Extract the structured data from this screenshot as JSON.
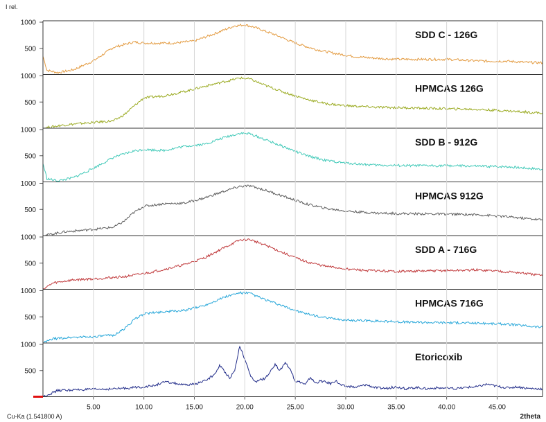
{
  "chart_data": {
    "type": "line",
    "title": "",
    "ylabel": "I rel.",
    "xlabel": "2theta",
    "radiation": "Cu-Ka (1.541800 A)",
    "xlim": [
      0,
      49.5
    ],
    "x_ticks": [
      "5.00",
      "10.00",
      "15.00",
      "20.00",
      "25.00",
      "30.00",
      "35.00",
      "40.00",
      "45.00"
    ],
    "x_tick_values": [
      5,
      10,
      15,
      20,
      25,
      30,
      35,
      40,
      45
    ],
    "y_ticks": [
      {
        "label": "1000",
        "value": 1000
      },
      {
        "label": "500",
        "value": 500
      }
    ],
    "ylim_per_panel": [
      0,
      1000
    ],
    "grid": "vertical",
    "series": [
      {
        "name": "SDD C - 126G",
        "color": "#e39a3f",
        "points": [
          [
            0.0,
            350
          ],
          [
            0.4,
            80
          ],
          [
            1.5,
            35
          ],
          [
            3,
            90
          ],
          [
            5,
            260
          ],
          [
            7,
            520
          ],
          [
            9,
            620
          ],
          [
            10,
            600
          ],
          [
            13,
            600
          ],
          [
            15,
            640
          ],
          [
            17,
            780
          ],
          [
            19,
            930
          ],
          [
            20,
            950
          ],
          [
            21,
            900
          ],
          [
            23,
            760
          ],
          [
            25,
            600
          ],
          [
            27,
            480
          ],
          [
            29,
            400
          ],
          [
            31,
            340
          ],
          [
            33,
            310
          ],
          [
            35,
            290
          ],
          [
            37,
            290
          ],
          [
            40,
            290
          ],
          [
            42,
            270
          ],
          [
            44,
            255
          ],
          [
            46,
            255
          ],
          [
            48,
            230
          ],
          [
            49.5,
            225
          ]
        ]
      },
      {
        "name": "HPMCAS 126G",
        "color": "#9aaa20",
        "points": [
          [
            0.0,
            0
          ],
          [
            2,
            60
          ],
          [
            5,
            110
          ],
          [
            7,
            140
          ],
          [
            8,
            250
          ],
          [
            9,
            420
          ],
          [
            10,
            580
          ],
          [
            12,
            620
          ],
          [
            14,
            700
          ],
          [
            16,
            800
          ],
          [
            18,
            890
          ],
          [
            19.5,
            960
          ],
          [
            20.5,
            940
          ],
          [
            22,
            820
          ],
          [
            24,
            680
          ],
          [
            26,
            560
          ],
          [
            28,
            470
          ],
          [
            30,
            430
          ],
          [
            33,
            400
          ],
          [
            36,
            390
          ],
          [
            40,
            370
          ],
          [
            43,
            360
          ],
          [
            46,
            330
          ],
          [
            49.5,
            290
          ]
        ]
      },
      {
        "name": "SDD B - 912G",
        "color": "#40c9b8",
        "points": [
          [
            0.0,
            350
          ],
          [
            0.4,
            60
          ],
          [
            1.5,
            20
          ],
          [
            3,
            80
          ],
          [
            5,
            260
          ],
          [
            7,
            470
          ],
          [
            9,
            590
          ],
          [
            10,
            620
          ],
          [
            12,
            600
          ],
          [
            14,
            680
          ],
          [
            16,
            720
          ],
          [
            18,
            850
          ],
          [
            19.5,
            930
          ],
          [
            20.5,
            920
          ],
          [
            22,
            810
          ],
          [
            24,
            660
          ],
          [
            26,
            510
          ],
          [
            28,
            410
          ],
          [
            30,
            360
          ],
          [
            33,
            320
          ],
          [
            36,
            310
          ],
          [
            40,
            310
          ],
          [
            43,
            300
          ],
          [
            46,
            290
          ],
          [
            49.5,
            240
          ]
        ]
      },
      {
        "name": "HPMCAS 912G",
        "color": "#5e5e5e",
        "points": [
          [
            0.0,
            0
          ],
          [
            2,
            70
          ],
          [
            5,
            120
          ],
          [
            7,
            160
          ],
          [
            8,
            270
          ],
          [
            9,
            440
          ],
          [
            10,
            560
          ],
          [
            12,
            610
          ],
          [
            14,
            620
          ],
          [
            16,
            720
          ],
          [
            18,
            850
          ],
          [
            19.5,
            940
          ],
          [
            20.5,
            950
          ],
          [
            22,
            870
          ],
          [
            24,
            740
          ],
          [
            26,
            610
          ],
          [
            28,
            520
          ],
          [
            30,
            470
          ],
          [
            33,
            430
          ],
          [
            36,
            420
          ],
          [
            40,
            410
          ],
          [
            43,
            400
          ],
          [
            46,
            360
          ],
          [
            49.5,
            300
          ]
        ]
      },
      {
        "name": "SDD A - 716G",
        "color": "#c0393b",
        "points": [
          [
            0.0,
            0
          ],
          [
            1,
            120
          ],
          [
            3,
            180
          ],
          [
            5,
            200
          ],
          [
            8,
            240
          ],
          [
            10,
            300
          ],
          [
            12,
            380
          ],
          [
            14,
            470
          ],
          [
            16,
            600
          ],
          [
            18,
            800
          ],
          [
            19.5,
            940
          ],
          [
            20.5,
            950
          ],
          [
            22,
            850
          ],
          [
            24,
            680
          ],
          [
            26,
            530
          ],
          [
            28,
            440
          ],
          [
            30,
            390
          ],
          [
            32,
            360
          ],
          [
            35,
            340
          ],
          [
            38,
            350
          ],
          [
            41,
            360
          ],
          [
            43,
            370
          ],
          [
            45,
            350
          ],
          [
            47,
            320
          ],
          [
            49.5,
            260
          ]
        ]
      },
      {
        "name": "HPMCAS 716G",
        "color": "#25a6d9",
        "points": [
          [
            0.0,
            0
          ],
          [
            1,
            80
          ],
          [
            3,
            110
          ],
          [
            5,
            120
          ],
          [
            7,
            150
          ],
          [
            8,
            260
          ],
          [
            9,
            440
          ],
          [
            10,
            560
          ],
          [
            12,
            600
          ],
          [
            14,
            620
          ],
          [
            16,
            720
          ],
          [
            18,
            880
          ],
          [
            19.5,
            960
          ],
          [
            20.5,
            950
          ],
          [
            22,
            830
          ],
          [
            24,
            690
          ],
          [
            26,
            560
          ],
          [
            28,
            480
          ],
          [
            30,
            440
          ],
          [
            33,
            420
          ],
          [
            36,
            400
          ],
          [
            40,
            390
          ],
          [
            43,
            380
          ],
          [
            46,
            360
          ],
          [
            49.5,
            300
          ]
        ]
      },
      {
        "name": "Etoricoxib",
        "color": "#1f2a88",
        "points": [
          [
            0.0,
            0
          ],
          [
            1.5,
            120
          ],
          [
            3,
            130
          ],
          [
            5,
            140
          ],
          [
            7,
            150
          ],
          [
            8,
            160
          ],
          [
            10,
            190
          ],
          [
            11,
            210
          ],
          [
            12,
            280
          ],
          [
            13,
            260
          ],
          [
            14,
            220
          ],
          [
            15,
            240
          ],
          [
            16,
            300
          ],
          [
            17,
            420
          ],
          [
            17.5,
            600
          ],
          [
            18,
            480
          ],
          [
            18.5,
            360
          ],
          [
            19,
            500
          ],
          [
            19.5,
            980
          ],
          [
            20,
            720
          ],
          [
            20.5,
            420
          ],
          [
            21,
            280
          ],
          [
            21.5,
            320
          ],
          [
            22,
            350
          ],
          [
            22.5,
            460
          ],
          [
            23,
            620
          ],
          [
            23.5,
            500
          ],
          [
            24,
            660
          ],
          [
            24.5,
            520
          ],
          [
            25,
            300
          ],
          [
            25.5,
            280
          ],
          [
            26,
            230
          ],
          [
            26.5,
            370
          ],
          [
            27,
            260
          ],
          [
            27.5,
            300
          ],
          [
            28,
            280
          ],
          [
            28.5,
            250
          ],
          [
            29,
            310
          ],
          [
            29.5,
            220
          ],
          [
            30,
            200
          ],
          [
            31,
            180
          ],
          [
            32,
            230
          ],
          [
            33,
            170
          ],
          [
            34,
            160
          ],
          [
            35,
            190
          ],
          [
            36,
            150
          ],
          [
            37,
            180
          ],
          [
            38,
            150
          ],
          [
            39,
            170
          ],
          [
            40,
            160
          ],
          [
            41,
            150
          ],
          [
            42,
            180
          ],
          [
            43,
            190
          ],
          [
            44,
            240
          ],
          [
            45,
            200
          ],
          [
            46,
            170
          ],
          [
            47,
            190
          ],
          [
            48,
            160
          ],
          [
            49.5,
            150
          ]
        ]
      }
    ]
  }
}
